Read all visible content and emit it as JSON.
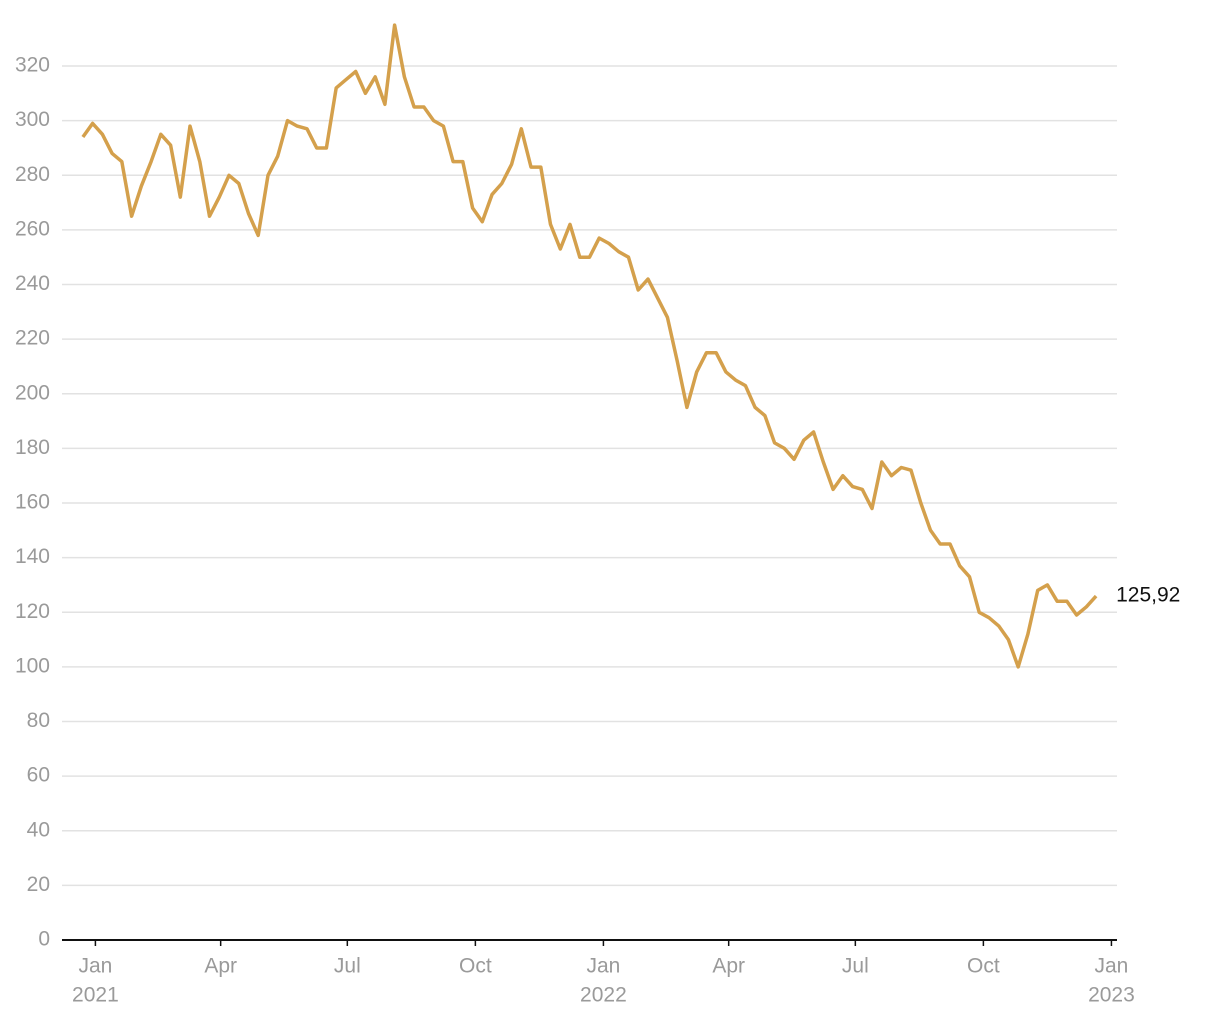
{
  "chart_data": {
    "type": "line",
    "x": [
      "2020-12-23",
      "2020-12-30",
      "2021-01-06",
      "2021-01-13",
      "2021-01-20",
      "2021-01-27",
      "2021-02-03",
      "2021-02-10",
      "2021-02-17",
      "2021-02-24",
      "2021-03-03",
      "2021-03-10",
      "2021-03-17",
      "2021-03-24",
      "2021-03-31",
      "2021-04-07",
      "2021-04-14",
      "2021-04-21",
      "2021-04-28",
      "2021-05-05",
      "2021-05-12",
      "2021-05-19",
      "2021-05-26",
      "2021-06-02",
      "2021-06-09",
      "2021-06-16",
      "2021-06-23",
      "2021-06-30",
      "2021-07-07",
      "2021-07-14",
      "2021-07-21",
      "2021-07-28",
      "2021-08-04",
      "2021-08-11",
      "2021-08-18",
      "2021-08-25",
      "2021-09-01",
      "2021-09-08",
      "2021-09-15",
      "2021-09-22",
      "2021-09-29",
      "2021-10-06",
      "2021-10-13",
      "2021-10-20",
      "2021-10-27",
      "2021-11-03",
      "2021-11-10",
      "2021-11-17",
      "2021-11-24",
      "2021-12-01",
      "2021-12-08",
      "2021-12-15",
      "2021-12-22",
      "2021-12-29",
      "2022-01-05",
      "2022-01-12",
      "2022-01-19",
      "2022-01-26",
      "2022-02-02",
      "2022-02-09",
      "2022-02-16",
      "2022-02-23",
      "2022-03-02",
      "2022-03-09",
      "2022-03-16",
      "2022-03-23",
      "2022-03-30",
      "2022-04-06",
      "2022-04-13",
      "2022-04-20",
      "2022-04-27",
      "2022-05-04",
      "2022-05-11",
      "2022-05-18",
      "2022-05-25",
      "2022-06-01",
      "2022-06-08",
      "2022-06-15",
      "2022-06-22",
      "2022-06-29",
      "2022-07-06",
      "2022-07-13",
      "2022-07-20",
      "2022-07-27",
      "2022-08-03",
      "2022-08-10",
      "2022-08-17",
      "2022-08-24",
      "2022-08-31",
      "2022-09-07",
      "2022-09-14",
      "2022-09-21",
      "2022-09-28",
      "2022-10-05",
      "2022-10-12",
      "2022-10-19",
      "2022-10-26",
      "2022-11-02",
      "2022-11-09",
      "2022-11-16",
      "2022-11-23",
      "2022-11-30",
      "2022-12-07",
      "2022-12-14",
      "2022-12-21"
    ],
    "series": [
      {
        "color": "#d4a04c",
        "values": [
          294,
          299,
          295,
          288,
          285,
          265,
          276,
          285,
          295,
          291,
          272,
          298,
          285,
          265,
          272,
          280,
          277,
          266,
          258,
          280,
          287,
          300,
          298,
          297,
          290,
          290,
          312,
          315,
          318,
          310,
          316,
          306,
          335,
          316,
          305,
          305,
          300,
          298,
          285,
          285,
          268,
          263,
          273,
          277,
          284,
          297,
          283,
          283,
          262,
          253,
          262,
          250,
          250,
          257,
          255,
          252,
          250,
          238,
          242,
          235,
          228,
          212,
          195,
          208,
          215,
          215,
          208,
          205,
          203,
          195,
          192,
          182,
          180,
          176,
          183,
          186,
          175,
          165,
          170,
          166,
          165,
          158,
          175,
          170,
          173,
          172,
          160,
          150,
          145,
          145,
          137,
          133,
          120,
          118,
          115,
          110,
          100,
          112,
          128,
          130,
          124,
          124,
          119,
          122,
          125.92
        ],
        "value_labels": [
          null,
          null,
          null,
          null,
          null,
          null,
          null,
          null,
          null,
          null,
          null,
          null,
          null,
          null,
          null,
          null,
          null,
          null,
          null,
          null,
          null,
          null,
          null,
          null,
          null,
          null,
          null,
          null,
          null,
          null,
          null,
          null,
          null,
          null,
          null,
          null,
          null,
          null,
          null,
          null,
          null,
          null,
          null,
          null,
          null,
          null,
          null,
          null,
          null,
          null,
          null,
          null,
          null,
          null,
          null,
          null,
          null,
          null,
          null,
          null,
          null,
          null,
          null,
          null,
          null,
          null,
          null,
          null,
          null,
          null,
          null,
          null,
          null,
          null,
          null,
          null,
          null,
          null,
          null,
          null,
          null,
          null,
          null,
          null,
          null,
          null,
          null,
          null,
          null,
          null,
          null,
          null,
          null,
          null,
          null,
          null,
          null,
          null,
          null,
          null,
          null,
          null,
          null,
          null,
          "125,92"
        ]
      }
    ],
    "xlim": [
      "2020-12-08",
      "2023-01-05"
    ],
    "xticks": [
      {
        "value": "2021-01-01",
        "label": "Jan",
        "sublabel": "2021"
      },
      {
        "value": "2021-04-01",
        "label": "Apr"
      },
      {
        "value": "2021-07-01",
        "label": "Jul"
      },
      {
        "value": "2021-10-01",
        "label": "Oct"
      },
      {
        "value": "2022-01-01",
        "label": "Jan",
        "sublabel": "2022"
      },
      {
        "value": "2022-04-01",
        "label": "Apr"
      },
      {
        "value": "2022-07-01",
        "label": "Jul"
      },
      {
        "value": "2022-10-01",
        "label": "Oct"
      },
      {
        "value": "2023-01-01",
        "label": "Jan",
        "sublabel": "2023"
      }
    ],
    "ylim": [
      0,
      340
    ],
    "yticks": [
      0,
      20,
      40,
      60,
      80,
      100,
      120,
      140,
      160,
      180,
      200,
      220,
      240,
      260,
      280,
      300,
      320
    ],
    "grid": true
  }
}
